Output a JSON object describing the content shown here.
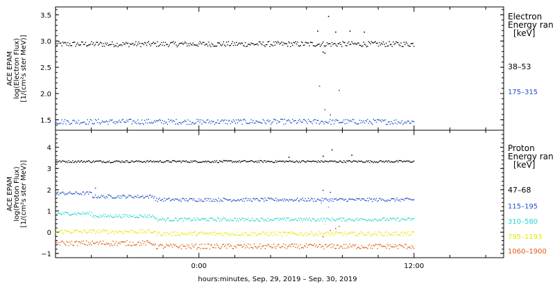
{
  "xlabel": "hours:minutes, Sep. 29, 2019 – Sep. 30, 2019",
  "colors": {
    "black": "#000000",
    "blue": "#1f4fc8",
    "cyan": "#23d4d4",
    "yellow": "#e6e600",
    "orange": "#e05a10"
  },
  "chart_data": [
    {
      "type": "scatter",
      "name": "electron-panel",
      "ylabel_lines": [
        "ACE EPAM",
        "log(Electron Flux)",
        "[1/(cm²s ster MeV)]"
      ],
      "ylim": [
        1.3,
        3.65
      ],
      "yticks": [
        1.5,
        2.0,
        2.5,
        3.0,
        3.5
      ],
      "ytick_labels": [
        "1.5",
        "2.0",
        "2.5",
        "3.0",
        "3.5"
      ],
      "xlim_hours": [
        -8,
        17
      ],
      "legend": {
        "title_lines": [
          "Electron",
          "Energy ran",
          "[keV]"
        ]
      },
      "series": [
        {
          "name": "38–53",
          "color": "#000000",
          "base": 2.95,
          "amp": 0.05,
          "t_end": 12.0,
          "outliers": [
            [
              6.6,
              3.2
            ],
            [
              7.2,
              3.48
            ],
            [
              7.6,
              3.18
            ],
            [
              8.4,
              3.2
            ],
            [
              9.2,
              3.18
            ],
            [
              7.0,
              2.78
            ],
            [
              6.9,
              2.8
            ]
          ]
        },
        {
          "name": "175–315",
          "color": "#1f4fc8",
          "base": 1.47,
          "amp": 0.05,
          "t_end": 12.0,
          "outliers": [
            [
              6.7,
              2.15
            ],
            [
              7.8,
              2.07
            ],
            [
              7.0,
              1.7
            ],
            [
              7.3,
              1.6
            ]
          ]
        }
      ]
    },
    {
      "type": "scatter",
      "name": "proton-panel",
      "ylabel_lines": [
        "ACE EPAM",
        "log(Proton Flux)",
        "[1/(cm²s ster MeV)]"
      ],
      "ylim": [
        -1.2,
        4.8
      ],
      "yticks": [
        -1,
        0,
        1,
        2,
        3,
        4
      ],
      "ytick_labels": [
        "−1",
        "0",
        "1",
        "2",
        "3",
        "4"
      ],
      "xlim_hours": [
        -8,
        17
      ],
      "xticks_hours": [
        0,
        12
      ],
      "xtick_labels": [
        "0:00",
        "12:00"
      ],
      "legend": {
        "title_lines": [
          "Proton",
          "Energy ran",
          "[keV]"
        ]
      },
      "series": [
        {
          "name": "47–68",
          "color": "#000000",
          "base": 3.35,
          "amp": 0.05,
          "t_end": 12.0,
          "outliers": [
            [
              5.0,
              3.55
            ],
            [
              6.9,
              3.6
            ],
            [
              7.4,
              3.9
            ],
            [
              8.5,
              3.65
            ]
          ]
        },
        {
          "name": "115–195",
          "color": "#1f4fc8",
          "base": 1.55,
          "amp": 0.08,
          "t_end": 12.0,
          "segments": [
            [
              -8,
              -6,
              1.85
            ],
            [
              -6,
              -2.5,
              1.7
            ],
            [
              -2.5,
              12,
              1.55
            ]
          ],
          "outliers": [
            [
              -5.8,
              2.1
            ],
            [
              6.9,
              2.0
            ],
            [
              7.3,
              1.9
            ]
          ]
        },
        {
          "name": "310–580",
          "color": "#23d4d4",
          "base": 0.6,
          "amp": 0.08,
          "t_end": 12.0,
          "segments": [
            [
              -8,
              -6,
              0.9
            ],
            [
              -6,
              -2.5,
              0.78
            ],
            [
              -2.5,
              12,
              0.62
            ]
          ],
          "outliers": [
            [
              6.8,
              1.4
            ],
            [
              7.2,
              1.2
            ]
          ]
        },
        {
          "name": "795–1193",
          "color": "#e6e600",
          "base": -0.05,
          "amp": 0.1,
          "t_end": 12.0,
          "segments": [
            [
              -8,
              -2.5,
              0.05
            ],
            [
              -2.5,
              12,
              -0.05
            ]
          ],
          "outliers": [
            [
              7.0,
              0.4
            ]
          ]
        },
        {
          "name": "1060–1900",
          "color": "#e05a10",
          "base": -0.6,
          "amp": 0.12,
          "t_end": 12.0,
          "segments": [
            [
              -8,
              -2.5,
              -0.5
            ],
            [
              -2.5,
              12,
              -0.65
            ]
          ],
          "outliers": [
            [
              7.3,
              0.1
            ],
            [
              7.6,
              0.2
            ],
            [
              6.9,
              -0.2
            ],
            [
              7.8,
              0.3
            ]
          ]
        }
      ]
    }
  ]
}
